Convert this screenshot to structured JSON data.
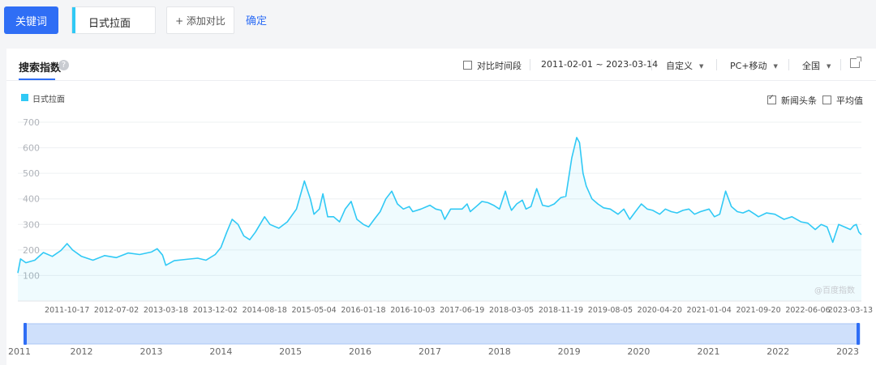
{
  "toolbar": {
    "keyword_button": "关键词",
    "keyword": "日式拉面",
    "add_compare": "+ 添加对比",
    "confirm": "确定"
  },
  "panel": {
    "tab_title": "搜索指数",
    "help_icon": "question-icon",
    "compare_period": "对比时间段",
    "date_range": "2011-02-01 ~ 2023-03-14",
    "custom": "自定义",
    "device": "PC+移动",
    "region": "全国",
    "news_headline": "新闻头条",
    "average": "平均值",
    "watermark": "@百度指数"
  },
  "colors": {
    "accent": "#2f6ef5",
    "series": "#30c9f5"
  },
  "chart_data": {
    "type": "area",
    "legend": [
      "日式拉面"
    ],
    "legend_placement": "top-left",
    "grid": true,
    "y_ticks": [
      "100",
      "200",
      "300",
      "400",
      "500",
      "600",
      "700"
    ],
    "ylim": [
      0,
      700
    ],
    "x_tick_labels": [
      "2011-10-17",
      "2012-07-02",
      "2013-03-18",
      "2013-12-02",
      "2014-08-18",
      "2015-05-04",
      "2016-01-18",
      "2016-10-03",
      "2017-06-19",
      "2018-03-05",
      "2018-11-19",
      "2019-08-05",
      "2020-04-20",
      "2021-01-04",
      "2021-09-20",
      "2022-06-06",
      "2023-03-13"
    ],
    "brush_year_labels": [
      "2011",
      "2012",
      "2013",
      "2014",
      "2015",
      "2016",
      "2017",
      "2018",
      "2019",
      "2020",
      "2021",
      "2022",
      "2023"
    ],
    "xlim": [
      "2011-02-01",
      "2023-03-14"
    ],
    "series": [
      {
        "name": "日式拉面",
        "points": [
          [
            "2011-02-01",
            110
          ],
          [
            "2011-02-15",
            165
          ],
          [
            "2011-03-15",
            150
          ],
          [
            "2011-05-01",
            160
          ],
          [
            "2011-06-15",
            190
          ],
          [
            "2011-08-01",
            175
          ],
          [
            "2011-09-15",
            198
          ],
          [
            "2011-10-17",
            225
          ],
          [
            "2011-11-15",
            200
          ],
          [
            "2012-01-01",
            175
          ],
          [
            "2012-03-01",
            160
          ],
          [
            "2012-05-01",
            178
          ],
          [
            "2012-07-02",
            170
          ],
          [
            "2012-09-01",
            188
          ],
          [
            "2012-11-01",
            182
          ],
          [
            "2013-01-01",
            192
          ],
          [
            "2013-02-01",
            205
          ],
          [
            "2013-03-01",
            180
          ],
          [
            "2013-03-18",
            140
          ],
          [
            "2013-05-01",
            158
          ],
          [
            "2013-07-01",
            163
          ],
          [
            "2013-09-01",
            168
          ],
          [
            "2013-10-15",
            160
          ],
          [
            "2013-12-02",
            182
          ],
          [
            "2014-01-01",
            210
          ],
          [
            "2014-02-01",
            270
          ],
          [
            "2014-03-01",
            320
          ],
          [
            "2014-04-01",
            300
          ],
          [
            "2014-05-01",
            255
          ],
          [
            "2014-06-01",
            240
          ],
          [
            "2014-07-01",
            270
          ],
          [
            "2014-08-18",
            330
          ],
          [
            "2014-09-15",
            300
          ],
          [
            "2014-11-01",
            285
          ],
          [
            "2014-12-15",
            310
          ],
          [
            "2015-02-01",
            360
          ],
          [
            "2015-03-15",
            470
          ],
          [
            "2015-04-15",
            400
          ],
          [
            "2015-05-04",
            340
          ],
          [
            "2015-06-01",
            360
          ],
          [
            "2015-06-20",
            420
          ],
          [
            "2015-07-15",
            330
          ],
          [
            "2015-08-15",
            330
          ],
          [
            "2015-09-15",
            310
          ],
          [
            "2015-10-15",
            360
          ],
          [
            "2015-11-15",
            390
          ],
          [
            "2015-12-15",
            320
          ],
          [
            "2016-01-18",
            300
          ],
          [
            "2016-02-15",
            290
          ],
          [
            "2016-03-15",
            320
          ],
          [
            "2016-04-15",
            350
          ],
          [
            "2016-05-15",
            400
          ],
          [
            "2016-06-15",
            430
          ],
          [
            "2016-07-15",
            380
          ],
          [
            "2016-08-15",
            360
          ],
          [
            "2016-09-15",
            370
          ],
          [
            "2016-10-03",
            350
          ],
          [
            "2016-11-15",
            360
          ],
          [
            "2017-01-01",
            375
          ],
          [
            "2017-02-01",
            360
          ],
          [
            "2017-03-01",
            355
          ],
          [
            "2017-03-20",
            320
          ],
          [
            "2017-04-20",
            360
          ],
          [
            "2017-06-19",
            360
          ],
          [
            "2017-07-15",
            380
          ],
          [
            "2017-08-01",
            350
          ],
          [
            "2017-09-01",
            370
          ],
          [
            "2017-10-01",
            390
          ],
          [
            "2017-11-01",
            385
          ],
          [
            "2017-12-01",
            375
          ],
          [
            "2018-01-01",
            360
          ],
          [
            "2018-02-01",
            430
          ],
          [
            "2018-02-20",
            380
          ],
          [
            "2018-03-05",
            355
          ],
          [
            "2018-04-01",
            380
          ],
          [
            "2018-05-01",
            395
          ],
          [
            "2018-05-20",
            360
          ],
          [
            "2018-06-15",
            370
          ],
          [
            "2018-07-15",
            440
          ],
          [
            "2018-08-15",
            375
          ],
          [
            "2018-09-15",
            370
          ],
          [
            "2018-10-15",
            380
          ],
          [
            "2018-11-19",
            405
          ],
          [
            "2018-12-15",
            410
          ],
          [
            "2019-01-15",
            560
          ],
          [
            "2019-02-10",
            640
          ],
          [
            "2019-02-25",
            620
          ],
          [
            "2019-03-15",
            500
          ],
          [
            "2019-04-01",
            450
          ],
          [
            "2019-05-01",
            400
          ],
          [
            "2019-06-01",
            380
          ],
          [
            "2019-07-01",
            365
          ],
          [
            "2019-08-05",
            360
          ],
          [
            "2019-09-15",
            340
          ],
          [
            "2019-10-15",
            360
          ],
          [
            "2019-11-15",
            320
          ],
          [
            "2019-12-15",
            350
          ],
          [
            "2020-01-15",
            380
          ],
          [
            "2020-02-15",
            360
          ],
          [
            "2020-03-15",
            355
          ],
          [
            "2020-04-20",
            340
          ],
          [
            "2020-05-20",
            360
          ],
          [
            "2020-06-20",
            350
          ],
          [
            "2020-07-20",
            345
          ],
          [
            "2020-08-20",
            355
          ],
          [
            "2020-09-20",
            360
          ],
          [
            "2020-10-20",
            340
          ],
          [
            "2020-11-20",
            350
          ],
          [
            "2021-01-04",
            360
          ],
          [
            "2021-02-01",
            330
          ],
          [
            "2021-03-01",
            340
          ],
          [
            "2021-04-01",
            430
          ],
          [
            "2021-05-01",
            370
          ],
          [
            "2021-06-01",
            350
          ],
          [
            "2021-07-01",
            345
          ],
          [
            "2021-08-01",
            355
          ],
          [
            "2021-09-01",
            340
          ],
          [
            "2021-09-20",
            330
          ],
          [
            "2021-11-01",
            345
          ],
          [
            "2021-12-15",
            340
          ],
          [
            "2022-02-01",
            320
          ],
          [
            "2022-03-15",
            330
          ],
          [
            "2022-05-01",
            310
          ],
          [
            "2022-06-06",
            305
          ],
          [
            "2022-07-15",
            280
          ],
          [
            "2022-08-15",
            300
          ],
          [
            "2022-09-15",
            290
          ],
          [
            "2022-10-15",
            230
          ],
          [
            "2022-11-15",
            300
          ],
          [
            "2022-12-15",
            290
          ],
          [
            "2023-01-15",
            280
          ],
          [
            "2023-02-01",
            295
          ],
          [
            "2023-02-15",
            300
          ],
          [
            "2023-03-01",
            270
          ],
          [
            "2023-03-14",
            260
          ]
        ]
      }
    ]
  }
}
